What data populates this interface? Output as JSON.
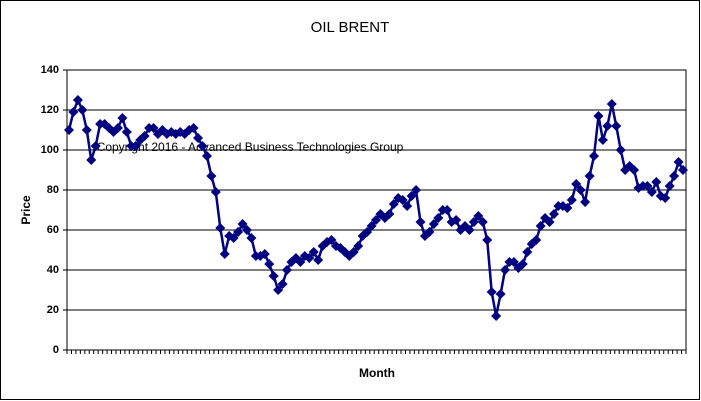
{
  "chart_data": {
    "type": "line",
    "title": "OIL BRENT",
    "x_label": "Month",
    "y_label": "Price",
    "annotation": "Copyright 2016 - Advanced Business Technologies Group",
    "color": "#000080",
    "marker": "diamond",
    "grid": true,
    "ylim": [
      0,
      140
    ],
    "yticks": [
      0,
      20,
      40,
      60,
      80,
      100,
      120,
      140
    ],
    "values": [
      110,
      119,
      125,
      120,
      110,
      95,
      102,
      113,
      113,
      111,
      109,
      111,
      116,
      109,
      102,
      102,
      105,
      107,
      111,
      111,
      108,
      110,
      108,
      109,
      108,
      109,
      108,
      110,
      111,
      106,
      102,
      97,
      87,
      79,
      61,
      48,
      57,
      56,
      59,
      63,
      60,
      56,
      47,
      47,
      48,
      43,
      37,
      30,
      33,
      40,
      44,
      46,
      44,
      47,
      46,
      49,
      45,
      52,
      54,
      55,
      52,
      51,
      49,
      47,
      49,
      52,
      57,
      59,
      62,
      65,
      68,
      66,
      68,
      73,
      76,
      75,
      72,
      77,
      80,
      64,
      57,
      59,
      63,
      66,
      70,
      70,
      64,
      65,
      60,
      62,
      60,
      64,
      67,
      64,
      55,
      29,
      17,
      28,
      40,
      44,
      44,
      41,
      43,
      49,
      53,
      55,
      62,
      66,
      64,
      68,
      72,
      72,
      71,
      75,
      83,
      80,
      74,
      87,
      97,
      117,
      105,
      112,
      123,
      112,
      100,
      90,
      92,
      90,
      81,
      82,
      82,
      79,
      84,
      77,
      76,
      82,
      87,
      94,
      90
    ]
  }
}
